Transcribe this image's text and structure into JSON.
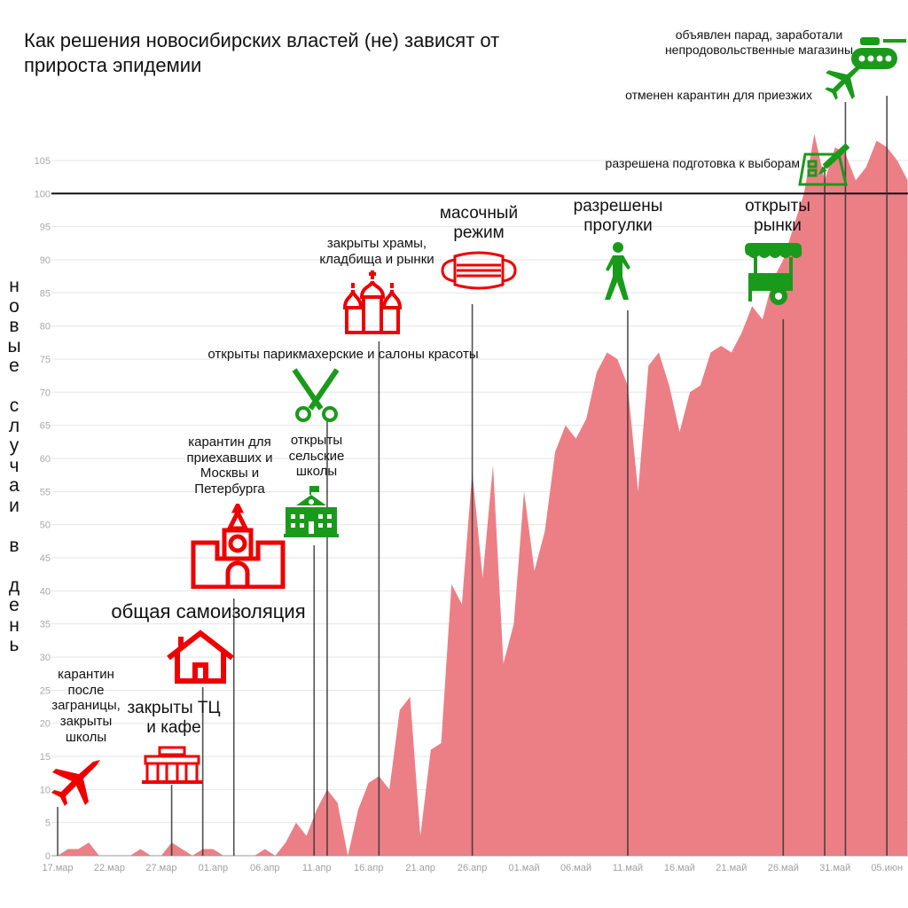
{
  "title": "Как решения новосибирских властей (не) зависят от прироста эпидемии",
  "y_axis_label": "новые случаи в день",
  "colors": {
    "area": "#ec7f86",
    "red_icon": "#ee0000",
    "green_icon": "#1a9a1a",
    "threshold_line": "#111111",
    "grid": "#e6e6e6"
  },
  "chart_data": {
    "type": "area",
    "title": "Как решения новосибирских властей (не) зависят от прироста эпидемии",
    "ylabel": "новые случаи в день",
    "xlabel": "",
    "ylim": [
      0,
      108
    ],
    "yticks": [
      0,
      5,
      10,
      15,
      20,
      25,
      30,
      35,
      40,
      45,
      50,
      55,
      60,
      65,
      70,
      75,
      80,
      85,
      90,
      95,
      100,
      105
    ],
    "grid": true,
    "x_start": "17.03",
    "x_end": "07.06",
    "xtick_labels": [
      "17.мар",
      "22.мар",
      "27.мар",
      "01.апр",
      "06.апр",
      "11.апр",
      "16.апр",
      "21.апр",
      "26.апр",
      "01.май",
      "06.май",
      "11.май",
      "16.май",
      "21.май",
      "26.май",
      "31.май",
      "05.июн"
    ],
    "xtick_step_days": 5,
    "values": [
      0,
      1,
      1,
      2,
      0,
      0,
      0,
      0,
      1,
      0,
      0,
      2,
      1,
      0,
      1,
      1,
      0,
      0,
      0,
      0,
      1,
      0,
      2,
      5,
      3,
      7,
      10,
      8,
      0,
      7,
      11,
      12,
      10,
      22,
      24,
      3,
      16,
      17,
      41,
      38,
      58,
      42,
      59,
      29,
      35,
      55,
      43,
      49,
      61,
      65,
      63,
      66,
      73,
      76,
      75,
      71,
      55,
      74,
      76,
      71,
      64,
      70,
      71,
      76,
      77,
      76,
      79,
      83,
      81,
      87,
      90,
      95,
      100,
      109,
      102,
      107,
      106,
      102,
      104,
      108,
      107,
      105,
      102
    ],
    "threshold": 100,
    "events": [
      {
        "date": "17.03",
        "label": "карантин после заграницы, закрыты школы",
        "icon": "airplane-icon",
        "color": "red"
      },
      {
        "date": "28.03",
        "label": "закрыты ТЦ и кафе",
        "icon": "shopping-mall-icon",
        "color": "red"
      },
      {
        "date": "31.03",
        "label": "общая самоизоляция",
        "icon": "house-icon",
        "color": "red"
      },
      {
        "date": "03.04",
        "label": "карантин для приехавших и Москвы и Петербурга",
        "icon": "kremlin-tower-icon",
        "color": "red"
      },
      {
        "date": "11.04",
        "label": "открыты сельские школы",
        "icon": "school-icon",
        "color": "green"
      },
      {
        "date": "12.04",
        "label": "открыты парикмахерские и салоны красоты",
        "icon": "scissors-icon",
        "color": "green"
      },
      {
        "date": "17.04",
        "label": "закрыты храмы, кладбища и рынки",
        "icon": "church-icon",
        "color": "red"
      },
      {
        "date": "26.04",
        "label": "масочный режим",
        "icon": "face-mask-icon",
        "color": "red"
      },
      {
        "date": "11.05",
        "label": "разрешены прогулки",
        "icon": "walking-person-icon",
        "color": "green"
      },
      {
        "date": "26.05",
        "label": "открыты рынки",
        "icon": "market-cart-icon",
        "color": "green"
      },
      {
        "date": "30.05",
        "label": "разрешена подготовка к выборам",
        "icon": "ballot-icon",
        "color": "green"
      },
      {
        "date": "01.06",
        "label": "отменен карантин для приезжих",
        "icon": "airplane-icon",
        "color": "green"
      },
      {
        "date": "05.06",
        "label": "объявлен парад, заработали непродовольственные магазины",
        "icon": "tank-icon",
        "color": "green"
      }
    ]
  }
}
